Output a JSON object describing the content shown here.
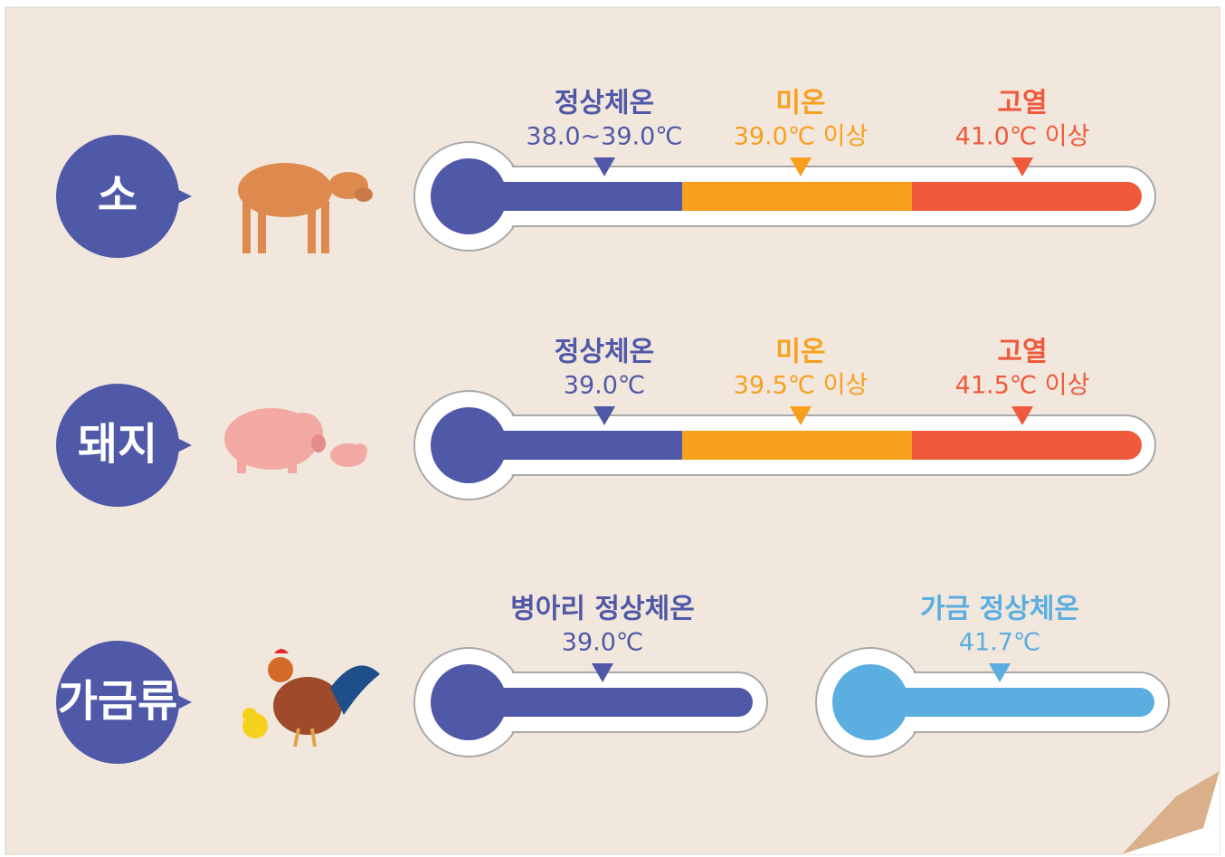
{
  "rows": [
    {
      "label": "소",
      "markers": [
        {
          "title": "정상체온",
          "value": "38.0~39.0℃"
        },
        {
          "title": "미온",
          "value": "39.0℃ 이상"
        },
        {
          "title": "고열",
          "value": "41.0℃ 이상"
        }
      ]
    },
    {
      "label": "돼지",
      "markers": [
        {
          "title": "정상체온",
          "value": "39.0℃"
        },
        {
          "title": "미온",
          "value": "39.5℃ 이상"
        },
        {
          "title": "고열",
          "value": "41.5℃ 이상"
        }
      ]
    },
    {
      "label": "가금류",
      "markers": [
        {
          "title": "병아리 정상체온",
          "value": "39.0℃"
        },
        {
          "title": "가금 정상체온",
          "value": "41.7℃"
        }
      ]
    }
  ]
}
